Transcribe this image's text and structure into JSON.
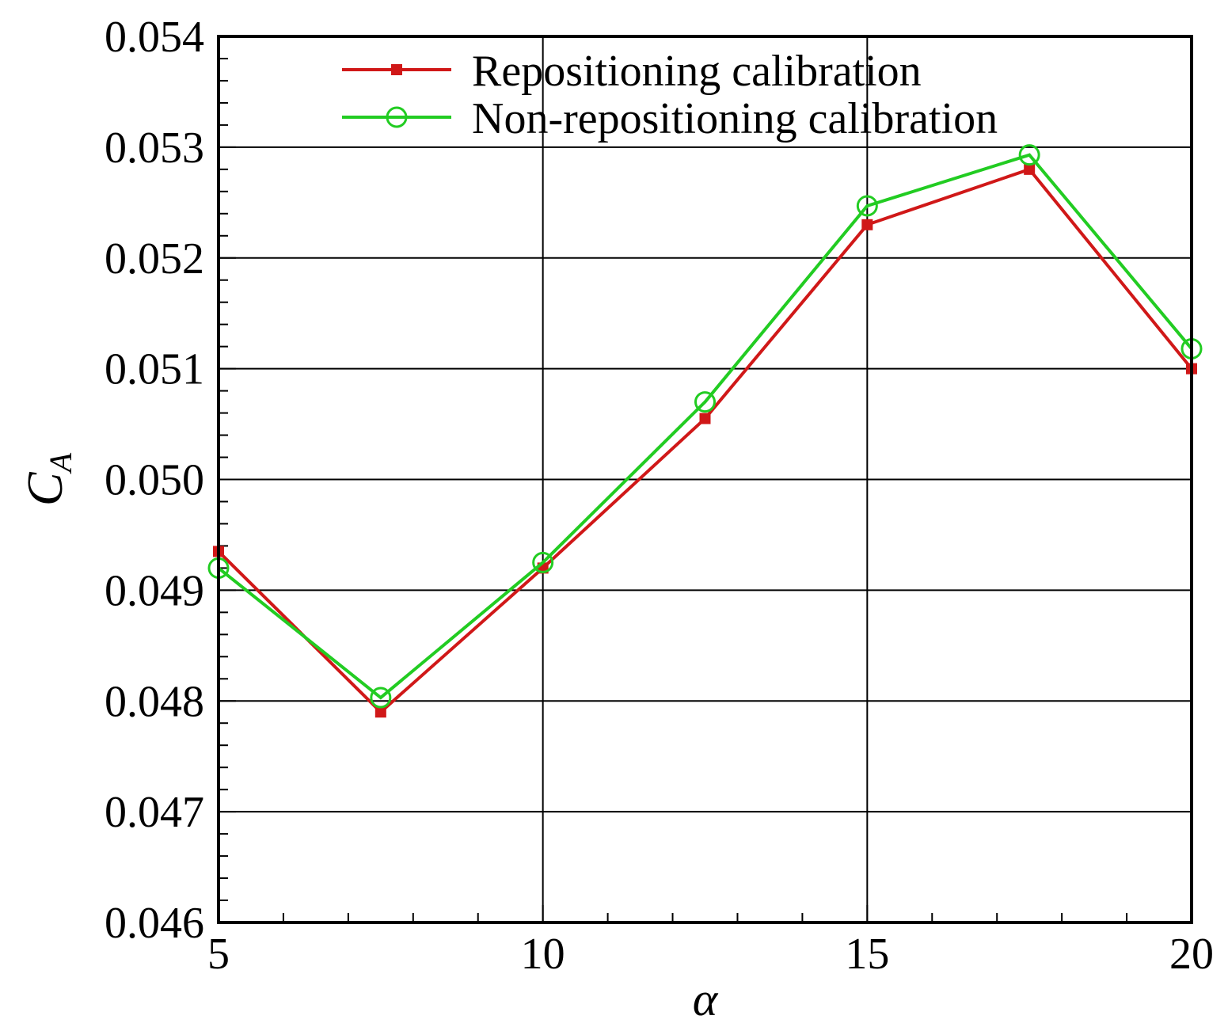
{
  "chart_data": {
    "type": "line",
    "xlabel": "α",
    "ylabel_main": "C",
    "ylabel_sub": "A",
    "xlim": [
      5,
      20
    ],
    "ylim": [
      0.046,
      0.054
    ],
    "x_ticks": [
      5,
      10,
      15,
      20
    ],
    "x_tick_labels": [
      "5",
      "10",
      "15",
      "20"
    ],
    "x_minor_step": 1,
    "y_ticks": [
      0.046,
      0.047,
      0.048,
      0.049,
      0.05,
      0.051,
      0.052,
      0.053,
      0.054
    ],
    "y_tick_labels": [
      "0.046",
      "0.047",
      "0.048",
      "0.049",
      "0.050",
      "0.051",
      "0.052",
      "0.053",
      "0.054"
    ],
    "y_minor_step": 0.0002,
    "grid": true,
    "legend_position": "top",
    "series": [
      {
        "name": "Repositioning calibration",
        "color": "#d01818",
        "marker": "filled-square",
        "x": [
          5,
          7.5,
          10,
          12.5,
          15,
          17.5,
          20
        ],
        "y": [
          0.04935,
          0.0479,
          0.0492,
          0.05055,
          0.0523,
          0.0528,
          0.051
        ]
      },
      {
        "name": "Non-repositioning calibration",
        "color": "#22cc22",
        "marker": "open-circle",
        "x": [
          5,
          7.5,
          10,
          12.5,
          15,
          17.5,
          20
        ],
        "y": [
          0.0492,
          0.04803,
          0.04925,
          0.0507,
          0.05247,
          0.05293,
          0.05118
        ]
      }
    ]
  }
}
